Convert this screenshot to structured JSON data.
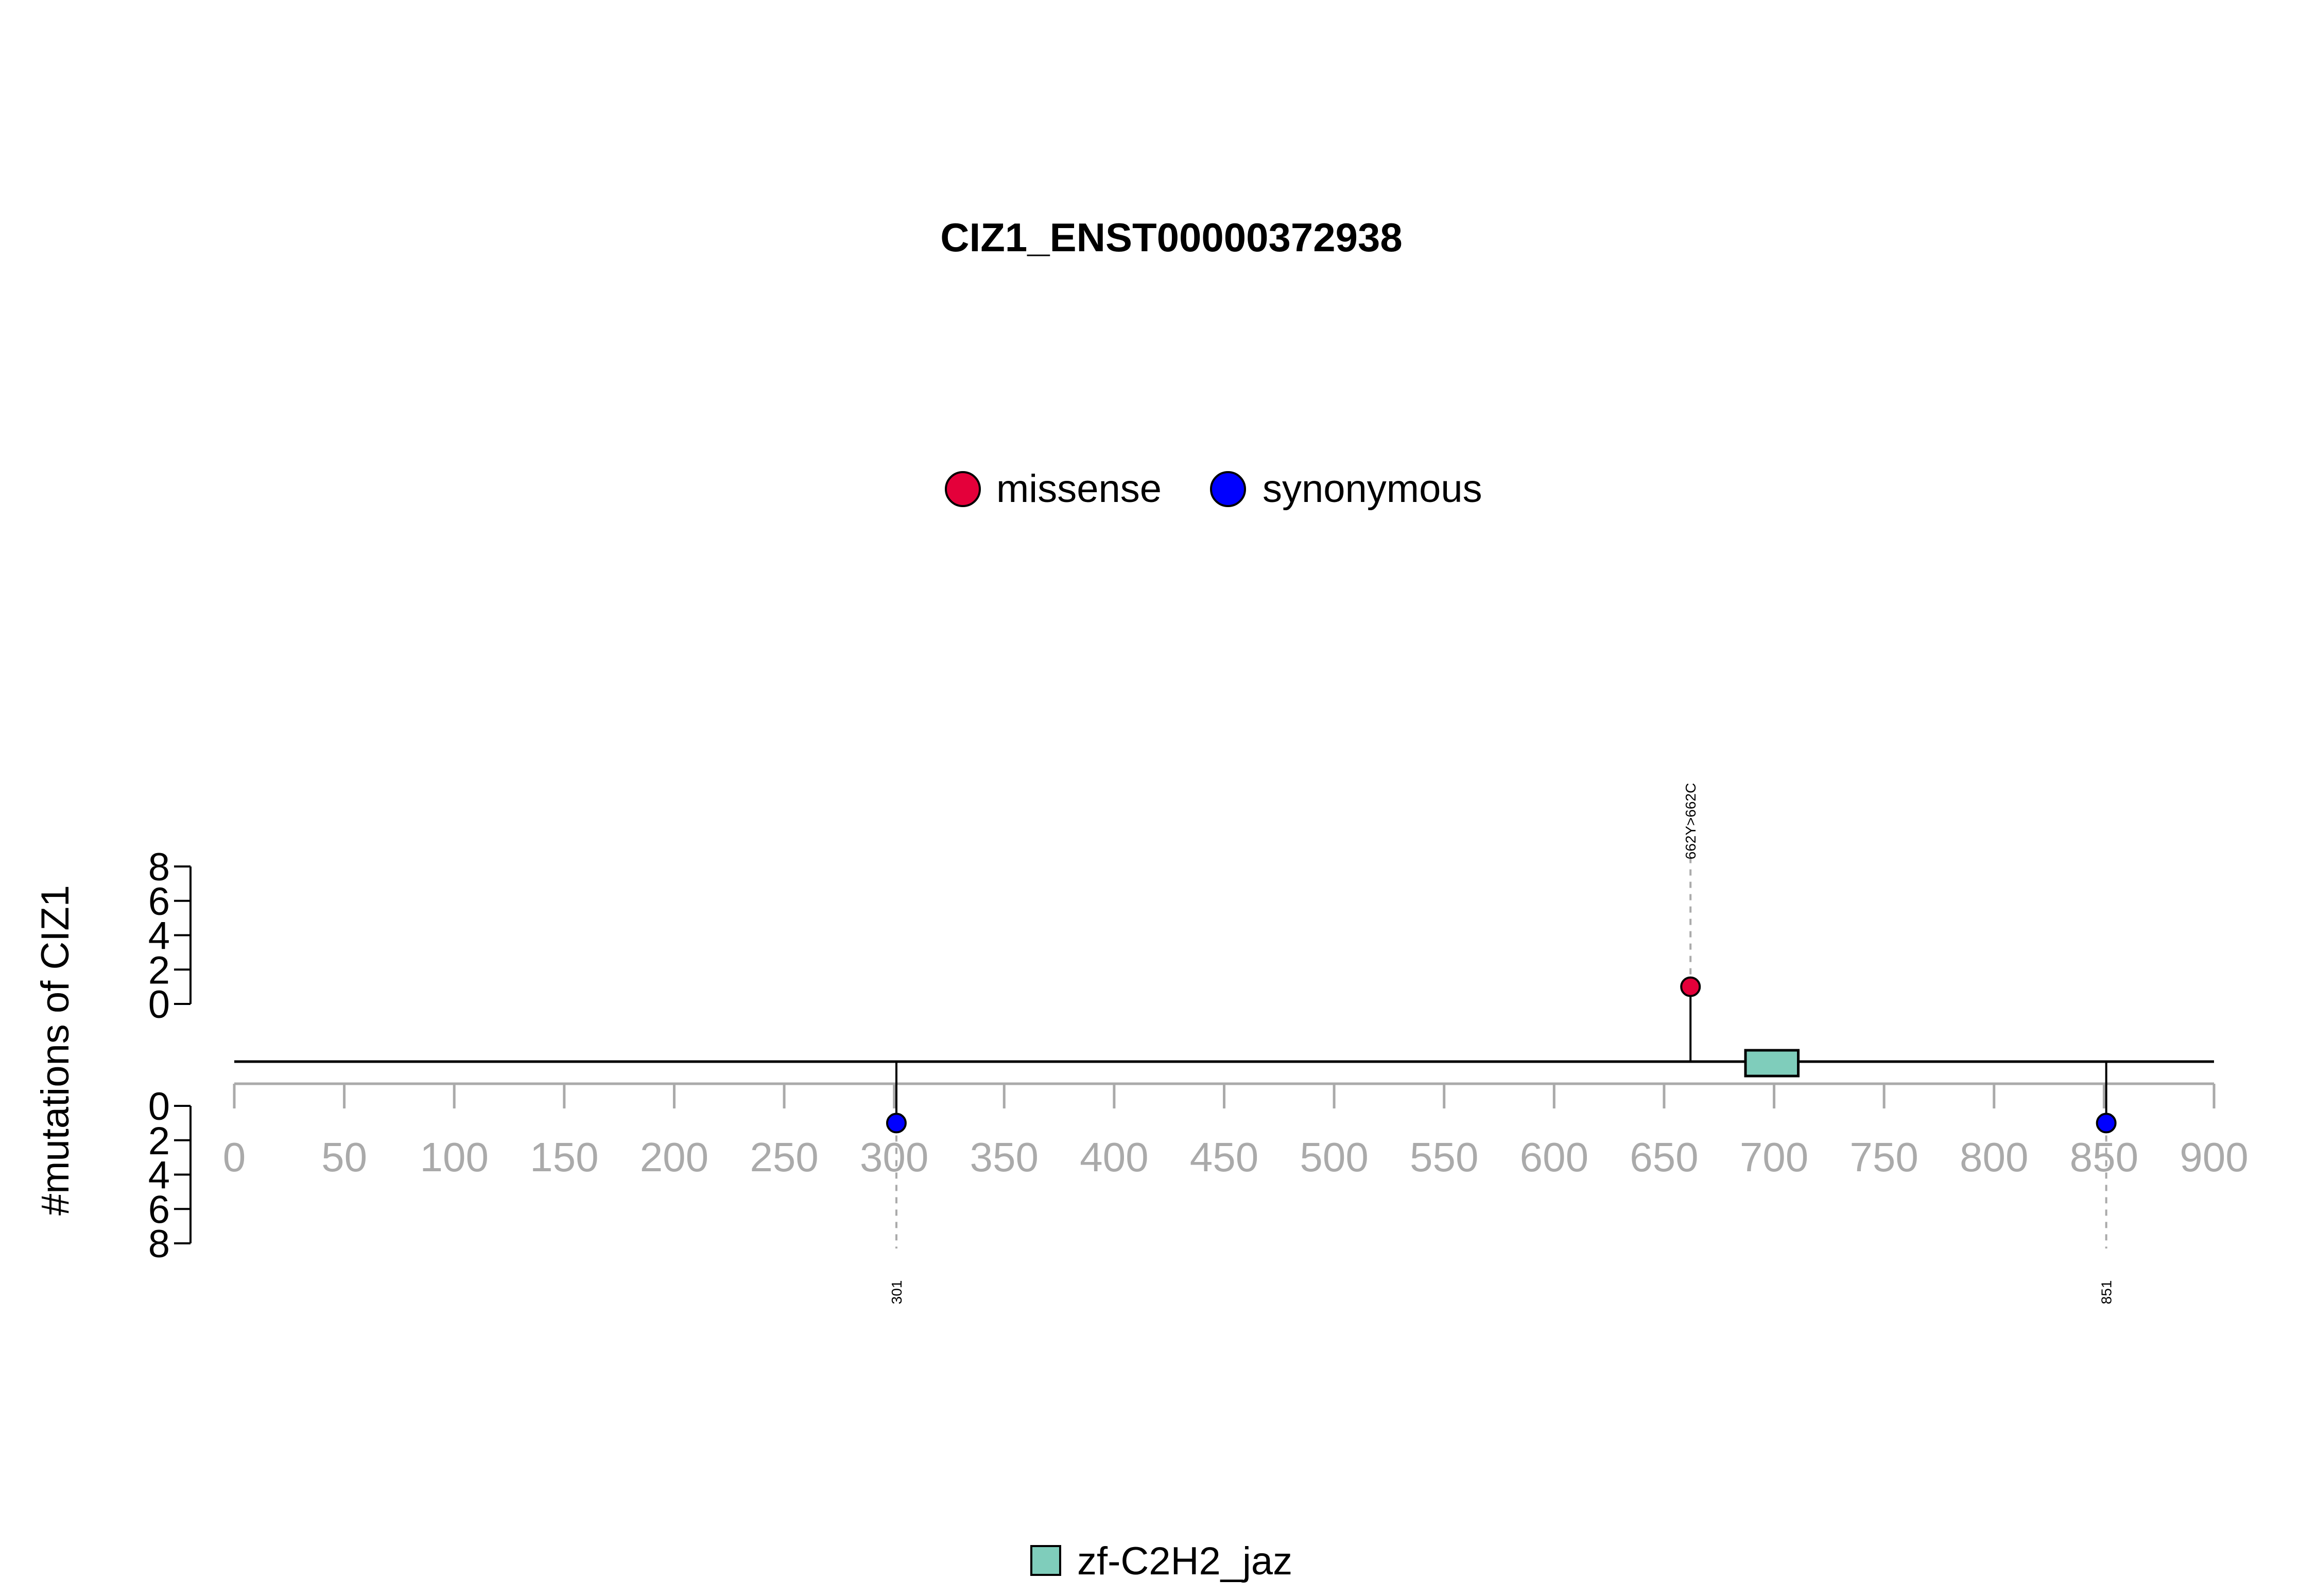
{
  "chart_data": {
    "type": "lollipop",
    "title": "CIZ1_ENST00000372938",
    "ylabel": "#mutations of CIZ1",
    "xlim": [
      0,
      900
    ],
    "ylim_top": [
      0,
      8
    ],
    "ylim_bottom": [
      0,
      8
    ],
    "x_ticks": [
      0,
      50,
      100,
      150,
      200,
      250,
      300,
      350,
      400,
      450,
      500,
      550,
      600,
      650,
      700,
      750,
      800,
      850,
      900
    ],
    "y_ticks": [
      0,
      2,
      4,
      6,
      8
    ],
    "legend": [
      {
        "name": "missense",
        "color": "#e4003a"
      },
      {
        "name": "synonymous",
        "color": "#0000ff"
      }
    ],
    "domain_legend": [
      {
        "name": "zf-C2H2_jaz",
        "color": "#7fcdbb"
      }
    ],
    "domains": [
      {
        "name": "zf-C2H2_jaz",
        "start": 687,
        "end": 711,
        "color": "#7fcdbb"
      }
    ],
    "mutations": [
      {
        "position": 662,
        "count": 1,
        "type": "missense",
        "side": "top",
        "label": "662Y>662C"
      },
      {
        "position": 301,
        "count": 1,
        "type": "synonymous",
        "side": "bottom",
        "label": "301"
      },
      {
        "position": 851,
        "count": 1,
        "type": "synonymous",
        "side": "bottom",
        "label": "851"
      }
    ],
    "grid": false
  }
}
